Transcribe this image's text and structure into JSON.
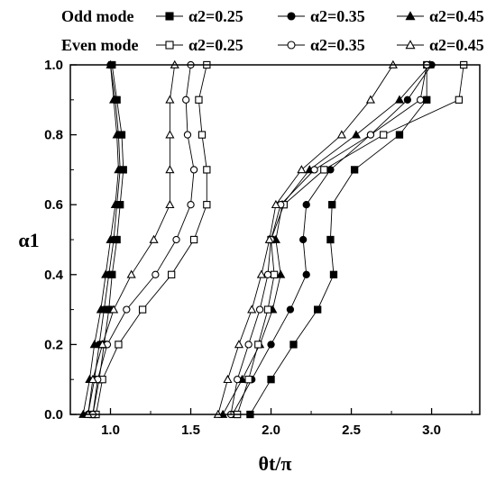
{
  "chart_data": {
    "type": "line",
    "xlabel": "θt/π",
    "ylabel": "α1",
    "xlim": [
      0.75,
      3.3
    ],
    "ylim": [
      0.0,
      1.0
    ],
    "xticks": [
      "1.0",
      "1.5",
      "2.0",
      "2.5",
      "3.0"
    ],
    "yticks": [
      "0.0",
      "0.2",
      "0.4",
      "0.6",
      "0.8",
      "1.0"
    ],
    "grid": false,
    "legend_position": "top",
    "legend_groups": [
      {
        "label": "Odd mode",
        "entries": [
          {
            "text": "α2=0.25",
            "marker": "square",
            "fill": "filled"
          },
          {
            "text": "α2=0.35",
            "marker": "circle",
            "fill": "filled"
          },
          {
            "text": "α2=0.45",
            "marker": "triangle",
            "fill": "filled"
          }
        ]
      },
      {
        "label": "Even mode",
        "entries": [
          {
            "text": "α2=0.25",
            "marker": "square",
            "fill": "open"
          },
          {
            "text": "α2=0.35",
            "marker": "circle",
            "fill": "open"
          },
          {
            "text": "α2=0.45",
            "marker": "triangle",
            "fill": "open"
          }
        ]
      }
    ],
    "y": [
      0.0,
      0.1,
      0.2,
      0.3,
      0.4,
      0.5,
      0.6,
      0.7,
      0.8,
      0.9,
      1.0
    ],
    "series": [
      {
        "name": "Odd mode α2=0.25 (low)",
        "marker": "square",
        "fill": "filled",
        "x": [
          0.89,
          0.93,
          0.96,
          0.99,
          1.01,
          1.04,
          1.06,
          1.08,
          1.07,
          1.04,
          1.01
        ]
      },
      {
        "name": "Odd mode α2=0.35 (low)",
        "marker": "circle",
        "fill": "filled",
        "x": [
          0.86,
          0.9,
          0.93,
          0.96,
          0.99,
          1.02,
          1.04,
          1.06,
          1.05,
          1.03,
          1.0
        ]
      },
      {
        "name": "Odd mode α2=0.45 (low)",
        "marker": "triangle",
        "fill": "filled",
        "x": [
          0.83,
          0.87,
          0.9,
          0.94,
          0.97,
          1.0,
          1.03,
          1.05,
          1.04,
          1.02,
          1.0
        ]
      },
      {
        "name": "Even mode α2=0.25 (low)",
        "marker": "square",
        "fill": "open",
        "x": [
          0.91,
          0.95,
          1.05,
          1.2,
          1.38,
          1.52,
          1.6,
          1.6,
          1.57,
          1.55,
          1.6
        ]
      },
      {
        "name": "Even mode α2=0.35 (low)",
        "marker": "circle",
        "fill": "open",
        "x": [
          0.89,
          0.92,
          0.98,
          1.1,
          1.28,
          1.41,
          1.5,
          1.52,
          1.48,
          1.47,
          1.5
        ]
      },
      {
        "name": "Even mode α2=0.45 (low)",
        "marker": "triangle",
        "fill": "open",
        "x": [
          0.86,
          0.89,
          0.95,
          1.02,
          1.13,
          1.27,
          1.37,
          1.37,
          1.37,
          1.37,
          1.4
        ]
      },
      {
        "name": "Odd mode α2=0.25 (high)",
        "marker": "square",
        "fill": "filled",
        "x": [
          1.87,
          2.0,
          2.14,
          2.29,
          2.39,
          2.37,
          2.38,
          2.52,
          2.8,
          2.97,
          2.97
        ]
      },
      {
        "name": "Odd mode α2=0.35 (high)",
        "marker": "circle",
        "fill": "filled",
        "x": [
          1.76,
          1.88,
          2.0,
          2.12,
          2.22,
          2.2,
          2.22,
          2.37,
          2.62,
          2.85,
          3.0
        ]
      },
      {
        "name": "Odd mode α2=0.45 (high)",
        "marker": "triangle",
        "fill": "filled",
        "x": [
          1.7,
          1.82,
          1.93,
          2.01,
          2.06,
          2.03,
          2.07,
          2.24,
          2.53,
          2.8,
          2.99
        ]
      },
      {
        "name": "Even mode α2=0.25 (high)",
        "marker": "square",
        "fill": "open",
        "x": [
          1.79,
          1.86,
          1.92,
          1.98,
          2.02,
          2.0,
          2.08,
          2.33,
          2.7,
          3.17,
          3.2
        ]
      },
      {
        "name": "Even mode α2=0.35 (high)",
        "marker": "circle",
        "fill": "open",
        "x": [
          1.75,
          1.79,
          1.86,
          1.93,
          1.98,
          2.0,
          2.06,
          2.27,
          2.62,
          2.93,
          2.97
        ]
      },
      {
        "name": "Even mode α2=0.45 (high)",
        "marker": "triangle",
        "fill": "open",
        "x": [
          1.67,
          1.73,
          1.8,
          1.88,
          1.94,
          1.99,
          2.03,
          2.19,
          2.44,
          2.62,
          2.76
        ]
      }
    ]
  }
}
